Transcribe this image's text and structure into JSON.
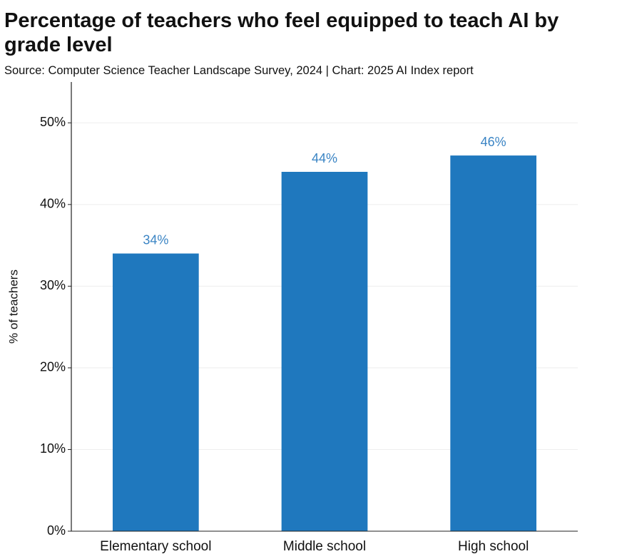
{
  "chart_data": {
    "type": "bar",
    "title": "Percentage of teachers who feel equipped to teach AI by grade level",
    "subtitle": "Source: Computer Science Teacher Landscape Survey, 2024 | Chart: 2025 AI Index report",
    "y_label": "% of teachers",
    "categories": [
      "Elementary school",
      "Middle school",
      "High school"
    ],
    "values": [
      34,
      44,
      46
    ],
    "value_labels": [
      "34%",
      "44%",
      "46%"
    ],
    "color": "#1f78be",
    "ylim": [
      0,
      55
    ],
    "yticks": [
      {
        "value": 0,
        "label": "0%"
      },
      {
        "value": 10,
        "label": "10%"
      },
      {
        "value": 20,
        "label": "20%"
      },
      {
        "value": 30,
        "label": "30%"
      },
      {
        "value": 40,
        "label": "40%"
      },
      {
        "value": 50,
        "label": "50%"
      }
    ],
    "grid": true
  }
}
